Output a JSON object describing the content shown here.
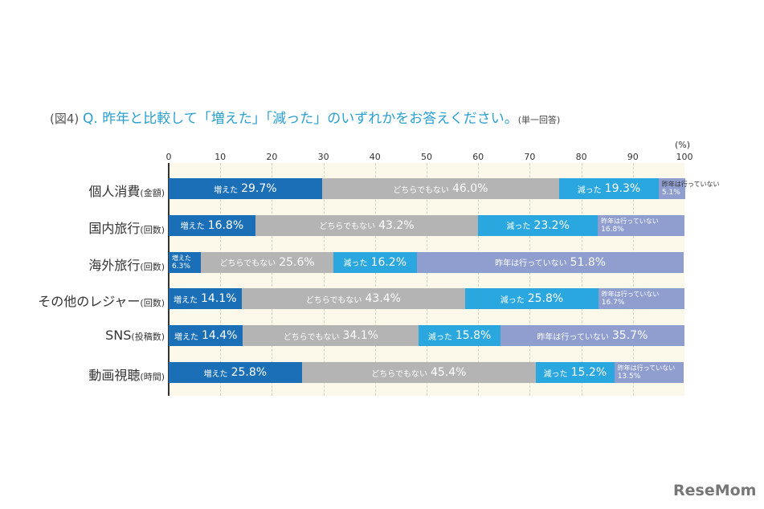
{
  "chart_data": {
    "type": "bar",
    "orientation": "horizontal-stacked",
    "title_prefix": "(図4)",
    "title": "Q. 昨年と比較して「増えた」「減った」のいずれかをお答えください。",
    "title_note": "(単一回答)",
    "unit": "(%)",
    "xlim": [
      0,
      100
    ],
    "ticks": [
      "0",
      "10",
      "20",
      "30",
      "40",
      "50",
      "60",
      "70",
      "80",
      "90",
      "100"
    ],
    "grid": true,
    "categories": [
      {
        "name": "個人消費",
        "unit": "(金額)"
      },
      {
        "name": "国内旅行",
        "unit": "(回数)"
      },
      {
        "name": "海外旅行",
        "unit": "(回数)"
      },
      {
        "name": "その他のレジャー",
        "unit": "(回数)"
      },
      {
        "name": "SNS",
        "unit": "(投稿数)"
      },
      {
        "name": "動画視聴",
        "unit": "(時間)"
      }
    ],
    "series": [
      {
        "name": "増えた",
        "color": "#1b6fb6",
        "values": [
          29.7,
          16.8,
          6.3,
          14.1,
          14.4,
          25.8
        ]
      },
      {
        "name": "どちらでもない",
        "color": "#b4b4b4",
        "values": [
          46.0,
          43.2,
          25.6,
          43.4,
          34.1,
          45.4
        ]
      },
      {
        "name": "減った",
        "color": "#2aa7df",
        "values": [
          19.3,
          23.2,
          16.2,
          25.8,
          15.8,
          15.2
        ]
      },
      {
        "name": "昨年は行っていない",
        "color": "#8f9ecf",
        "values": [
          5.1,
          16.8,
          51.8,
          16.7,
          35.7,
          13.5
        ]
      }
    ]
  },
  "logo": "ReseMom"
}
